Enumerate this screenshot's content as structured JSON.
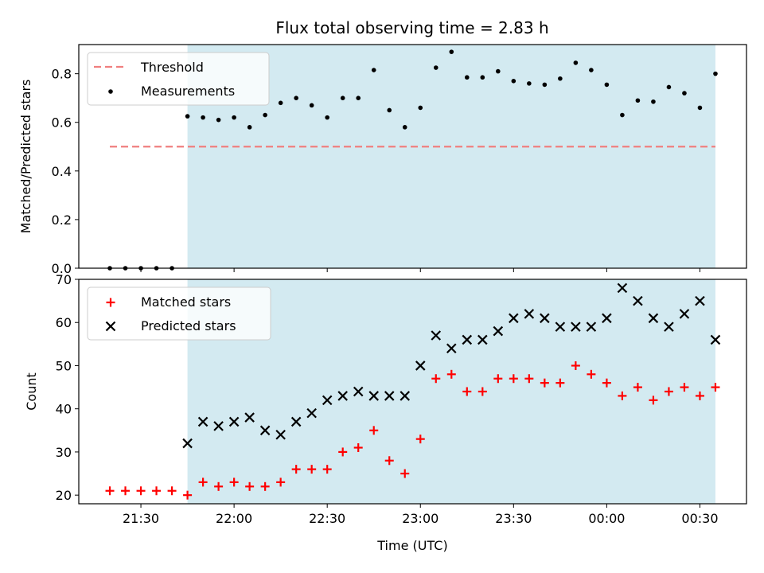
{
  "title": "Flux total observing time = 2.83 h",
  "colors": {
    "background": "#ffffff",
    "shade": "#d3eaf1",
    "threshold": "#f07f7f",
    "measurement": "#000000",
    "matched": "#ff0000",
    "predicted": "#000000"
  },
  "chart_data": [
    {
      "type": "scatter",
      "ylabel": "Matched/Predicted stars",
      "ylim": [
        0,
        0.92
      ],
      "yticks": [
        "0.0",
        "0.2",
        "0.4",
        "0.6",
        "0.8"
      ],
      "ytick_values": [
        0,
        0.2,
        0.4,
        0.6,
        0.8
      ],
      "xlim": [
        "21:10",
        "00:45"
      ],
      "shaded_span": [
        "21:45",
        "00:35"
      ],
      "legend_position": "upper-left",
      "grid": false,
      "series": [
        {
          "name": "Threshold",
          "style": "dashed-line",
          "color": "#f07f7f",
          "x": [
            "21:20",
            "00:35"
          ],
          "y": [
            0.5,
            0.5
          ]
        },
        {
          "name": "Measurements",
          "style": "dot",
          "color": "#000000",
          "x": [
            "21:20",
            "21:25",
            "21:30",
            "21:35",
            "21:40",
            "21:45",
            "21:50",
            "21:55",
            "22:00",
            "22:05",
            "22:10",
            "22:15",
            "22:20",
            "22:25",
            "22:30",
            "22:35",
            "22:40",
            "22:45",
            "22:50",
            "22:55",
            "23:00",
            "23:05",
            "23:10",
            "23:15",
            "23:20",
            "23:25",
            "23:30",
            "23:35",
            "23:40",
            "23:45",
            "23:50",
            "23:55",
            "00:00",
            "00:05",
            "00:10",
            "00:15",
            "00:20",
            "00:25",
            "00:30",
            "00:35"
          ],
          "y": [
            0,
            0,
            0,
            0,
            0,
            0.625,
            0.62,
            0.61,
            0.62,
            0.58,
            0.63,
            0.68,
            0.7,
            0.67,
            0.62,
            0.7,
            0.7,
            0.815,
            0.65,
            0.58,
            0.66,
            0.825,
            0.89,
            0.785,
            0.785,
            0.81,
            0.77,
            0.76,
            0.755,
            0.78,
            0.845,
            0.815,
            0.755,
            0.63,
            0.69,
            0.685,
            0.745,
            0.72,
            0.66,
            0.8
          ]
        }
      ]
    },
    {
      "type": "scatter",
      "ylabel": "Count",
      "xlabel": "Time (UTC)",
      "ylim": [
        18,
        70
      ],
      "yticks": [
        "20",
        "30",
        "40",
        "50",
        "60",
        "70"
      ],
      "ytick_values": [
        20,
        30,
        40,
        50,
        60,
        70
      ],
      "xlim": [
        "21:10",
        "00:45"
      ],
      "xticks": [
        "21:30",
        "22:00",
        "22:30",
        "23:00",
        "23:30",
        "00:00",
        "00:30"
      ],
      "shaded_span": [
        "21:45",
        "00:35"
      ],
      "legend_position": "upper-left",
      "grid": false,
      "series": [
        {
          "name": "Matched stars",
          "marker": "plus",
          "color": "#ff0000",
          "x": [
            "21:20",
            "21:25",
            "21:30",
            "21:35",
            "21:40",
            "21:45",
            "21:50",
            "21:55",
            "22:00",
            "22:05",
            "22:10",
            "22:15",
            "22:20",
            "22:25",
            "22:30",
            "22:35",
            "22:40",
            "22:45",
            "22:50",
            "22:55",
            "23:00",
            "23:05",
            "23:10",
            "23:15",
            "23:20",
            "23:25",
            "23:30",
            "23:35",
            "23:40",
            "23:45",
            "23:50",
            "23:55",
            "00:00",
            "00:05",
            "00:10",
            "00:15",
            "00:20",
            "00:25",
            "00:30",
            "00:35"
          ],
          "y": [
            21,
            21,
            21,
            21,
            21,
            20,
            23,
            22,
            23,
            22,
            22,
            23,
            26,
            26,
            26,
            30,
            31,
            35,
            28,
            25,
            33,
            47,
            48,
            44,
            44,
            47,
            47,
            47,
            46,
            46,
            50,
            48,
            46,
            43,
            45,
            42,
            44,
            45,
            43,
            45
          ]
        },
        {
          "name": "Predicted stars",
          "marker": "x",
          "color": "#000000",
          "x": [
            "21:45",
            "21:50",
            "21:55",
            "22:00",
            "22:05",
            "22:10",
            "22:15",
            "22:20",
            "22:25",
            "22:30",
            "22:35",
            "22:40",
            "22:45",
            "22:50",
            "22:55",
            "23:00",
            "23:05",
            "23:10",
            "23:15",
            "23:20",
            "23:25",
            "23:30",
            "23:35",
            "23:40",
            "23:45",
            "23:50",
            "23:55",
            "00:00",
            "00:05",
            "00:10",
            "00:15",
            "00:20",
            "00:25",
            "00:30",
            "00:35"
          ],
          "y": [
            32,
            37,
            36,
            37,
            38,
            35,
            34,
            37,
            39,
            42,
            43,
            44,
            43,
            43,
            43,
            50,
            57,
            54,
            56,
            56,
            58,
            61,
            62,
            61,
            59,
            59,
            59,
            61,
            68,
            65,
            61,
            59,
            62,
            65,
            56
          ]
        }
      ]
    }
  ]
}
